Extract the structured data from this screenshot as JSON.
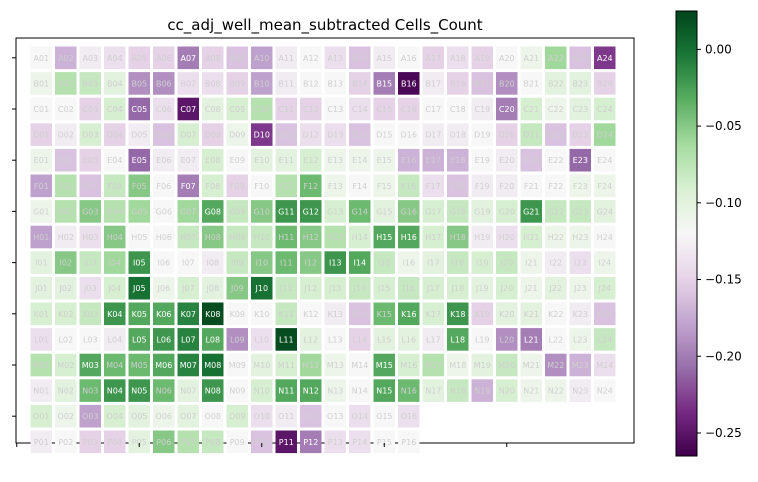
{
  "chart_data": {
    "type": "heatmap",
    "title": "cc_adj_well_mean_subtracted Cells_Count",
    "rows": [
      "A",
      "B",
      "C",
      "D",
      "E",
      "F",
      "G",
      "H",
      "I",
      "J",
      "K",
      "L",
      "M",
      "N",
      "O",
      "P"
    ],
    "cols": [
      "01",
      "02",
      "03",
      "04",
      "05",
      "06",
      "07",
      "08",
      "09",
      "10",
      "11",
      "12",
      "13",
      "14",
      "15",
      "16",
      "17",
      "18",
      "19",
      "20",
      "21",
      "22",
      "23",
      "24"
    ],
    "colorbar": {
      "vmin": -0.265,
      "vmax": 0.025,
      "ticks": [
        0.0,
        -0.05,
        -0.1,
        -0.15,
        -0.2,
        -0.25
      ],
      "tick_labels": [
        "0.00",
        "−0.05",
        "−0.10",
        "−0.15",
        "−0.20",
        "−0.25"
      ],
      "colormap": "PRGn",
      "center": -0.12
    },
    "values": [
      [
        -0.12,
        -0.17,
        -0.13,
        -0.14,
        -0.15,
        -0.15,
        -0.2,
        -0.15,
        -0.16,
        -0.18,
        -0.13,
        -0.12,
        -0.14,
        -0.16,
        -0.13,
        -0.12,
        -0.15,
        -0.14,
        -0.15,
        -0.12,
        -0.11,
        -0.06,
        -0.16,
        -0.23
      ],
      [
        -0.11,
        -0.07,
        -0.08,
        -0.1,
        -0.19,
        -0.19,
        -0.14,
        -0.14,
        -0.15,
        -0.18,
        -0.13,
        -0.12,
        -0.12,
        -0.15,
        -0.2,
        -0.26,
        -0.13,
        -0.15,
        -0.16,
        -0.19,
        -0.12,
        -0.1,
        -0.1,
        -0.15
      ],
      [
        -0.12,
        -0.12,
        -0.15,
        -0.09,
        -0.21,
        -0.14,
        -0.25,
        -0.1,
        -0.09,
        -0.07,
        -0.15,
        -0.15,
        -0.12,
        -0.14,
        -0.15,
        -0.15,
        -0.12,
        -0.12,
        -0.13,
        -0.2,
        -0.09,
        -0.11,
        -0.1,
        -0.09
      ],
      [
        -0.15,
        -0.13,
        -0.09,
        -0.15,
        -0.13,
        -0.16,
        -0.09,
        -0.15,
        -0.11,
        -0.23,
        -0.16,
        -0.14,
        -0.14,
        -0.16,
        -0.12,
        -0.12,
        -0.13,
        -0.13,
        -0.12,
        -0.15,
        -0.08,
        -0.16,
        -0.15,
        -0.06
      ],
      [
        -0.11,
        -0.16,
        -0.15,
        -0.12,
        -0.21,
        -0.13,
        -0.13,
        -0.09,
        -0.12,
        -0.1,
        -0.1,
        -0.09,
        -0.11,
        -0.11,
        -0.11,
        -0.17,
        -0.17,
        -0.17,
        -0.12,
        -0.13,
        -0.16,
        -0.12,
        -0.21,
        -0.12
      ],
      [
        -0.18,
        -0.07,
        -0.16,
        -0.08,
        -0.05,
        -0.12,
        -0.2,
        -0.09,
        -0.15,
        -0.12,
        -0.07,
        -0.04,
        -0.11,
        -0.12,
        -0.11,
        -0.08,
        -0.14,
        -0.16,
        -0.13,
        -0.13,
        -0.12,
        -0.12,
        -0.11,
        -0.11
      ],
      [
        -0.11,
        -0.07,
        -0.05,
        -0.07,
        -0.06,
        -0.12,
        -0.06,
        -0.03,
        -0.08,
        -0.05,
        -0.02,
        -0.02,
        -0.09,
        -0.04,
        -0.1,
        -0.05,
        -0.09,
        -0.08,
        -0.1,
        -0.09,
        -0.02,
        -0.08,
        -0.08,
        -0.1
      ],
      [
        -0.18,
        -0.13,
        -0.14,
        -0.05,
        -0.12,
        -0.12,
        -0.08,
        -0.05,
        -0.08,
        -0.08,
        -0.04,
        -0.05,
        -0.07,
        -0.09,
        -0.03,
        -0.03,
        -0.09,
        -0.05,
        -0.13,
        -0.14,
        -0.09,
        -0.11,
        -0.11,
        -0.12
      ],
      [
        -0.1,
        -0.05,
        -0.08,
        -0.06,
        -0.02,
        -0.12,
        -0.12,
        -0.13,
        -0.08,
        -0.05,
        -0.04,
        -0.05,
        -0.02,
        -0.03,
        -0.08,
        -0.11,
        -0.1,
        -0.08,
        -0.09,
        -0.08,
        -0.11,
        -0.13,
        -0.14,
        -0.11
      ],
      [
        -0.1,
        -0.1,
        -0.14,
        -0.09,
        0.0,
        -0.11,
        -0.09,
        -0.1,
        -0.05,
        0.0,
        -0.08,
        -0.09,
        -0.09,
        -0.08,
        -0.09,
        -0.08,
        -0.09,
        -0.09,
        -0.1,
        -0.09,
        -0.11,
        -0.1,
        -0.11,
        -0.09
      ],
      [
        -0.09,
        -0.09,
        -0.08,
        -0.02,
        -0.03,
        -0.03,
        -0.01,
        0.02,
        -0.12,
        -0.12,
        -0.08,
        -0.12,
        -0.13,
        -0.16,
        -0.04,
        -0.03,
        -0.09,
        -0.02,
        -0.15,
        -0.1,
        -0.1,
        -0.12,
        -0.13,
        -0.16
      ],
      [
        -0.14,
        -0.12,
        -0.12,
        -0.13,
        -0.03,
        -0.02,
        -0.01,
        -0.03,
        -0.19,
        -0.14,
        0.02,
        -0.1,
        -0.12,
        -0.15,
        -0.1,
        -0.1,
        -0.13,
        -0.03,
        -0.12,
        -0.19,
        -0.2,
        -0.12,
        -0.11,
        -0.08
      ],
      [
        -0.07,
        -0.09,
        -0.03,
        -0.04,
        -0.04,
        -0.03,
        -0.01,
        0.0,
        -0.12,
        -0.1,
        -0.09,
        -0.06,
        -0.11,
        -0.12,
        -0.03,
        -0.09,
        -0.07,
        -0.11,
        -0.1,
        -0.08,
        -0.11,
        -0.19,
        -0.17,
        -0.14
      ],
      [
        -0.13,
        -0.1,
        -0.04,
        -0.02,
        -0.02,
        -0.04,
        -0.1,
        -0.02,
        -0.12,
        -0.09,
        -0.03,
        -0.03,
        -0.11,
        -0.12,
        -0.03,
        -0.04,
        -0.1,
        -0.08,
        -0.17,
        -0.09,
        -0.11,
        -0.11,
        -0.13,
        -0.12
      ],
      [
        -0.09,
        -0.11,
        -0.18,
        -0.09,
        -0.1,
        -0.11,
        -0.1,
        -0.12,
        -0.09,
        -0.14,
        -0.13,
        -0.16,
        -0.12,
        -0.14,
        -0.12,
        -0.14,
        null,
        null,
        null,
        null,
        null,
        null,
        null,
        null
      ],
      [
        -0.13,
        -0.12,
        -0.15,
        -0.15,
        -0.1,
        -0.05,
        -0.07,
        -0.08,
        -0.12,
        -0.16,
        -0.25,
        -0.2,
        -0.14,
        -0.14,
        -0.12,
        -0.12,
        null,
        null,
        null,
        null,
        null,
        null,
        null,
        null
      ]
    ],
    "xlim": [
      0,
      24
    ],
    "ylim": [
      0,
      16
    ],
    "grid": false
  }
}
